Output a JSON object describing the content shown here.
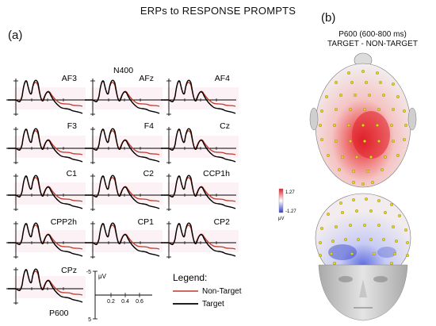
{
  "title": "ERPs to RESPONSE PROMPTS",
  "panel_a_label": "(a)",
  "panel_b_label": "(b)",
  "channels": [
    "AF3",
    "AFz",
    "AF4",
    "F3",
    "F4",
    "Cz",
    "C1",
    "C2",
    "CCP1h",
    "CPP2h",
    "CP1",
    "CP2",
    "CPz"
  ],
  "annotations": {
    "n400": "N400",
    "p600": "P600"
  },
  "scale_bar": {
    "y_top": "-5",
    "y_bottom": "5",
    "unit": "μV",
    "x_ticks": [
      "0.2",
      "0.4",
      "0.6"
    ]
  },
  "legend": {
    "title": "Legend:",
    "items": [
      {
        "label": "Non-Target",
        "color": "#c0392b"
      },
      {
        "label": "Target",
        "color": "#000000"
      }
    ]
  },
  "topomap": {
    "title_line1": "P600 (600-800 ms)",
    "title_line2": "TARGET - NON-TARGET",
    "colorbar_max": "1.27",
    "colorbar_min": "-1.27",
    "colorbar_unit": "μV",
    "colors": {
      "positive": "#e0202a",
      "negative": "#3040c8",
      "neutral": "#f4ecec"
    }
  }
}
